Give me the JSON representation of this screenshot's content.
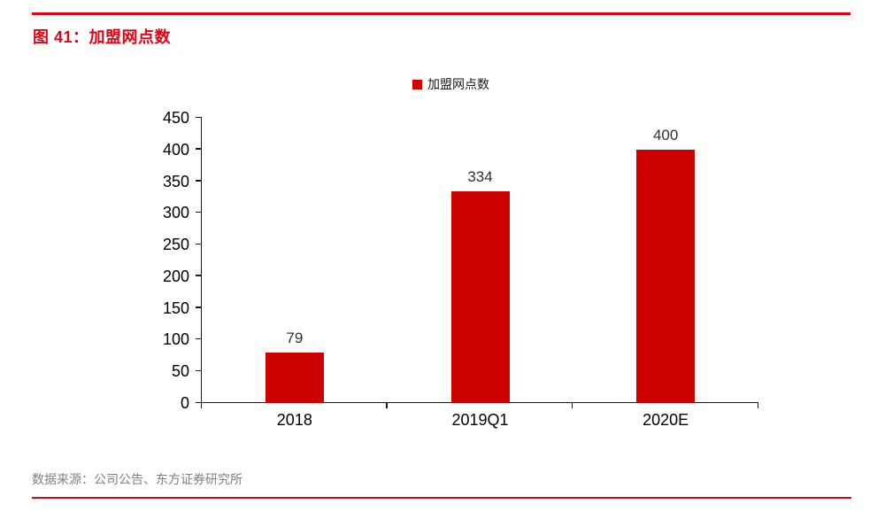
{
  "page": {
    "title": "图 41：加盟网点数",
    "source_note": "数据来源：公司公告、东方证券研究所",
    "title_color": "#e60012",
    "rule_color": "#e8000b",
    "source_text_color": "#808080"
  },
  "chart_data": {
    "type": "bar",
    "title": "",
    "legend": [
      "加盟网点数"
    ],
    "legend_position": "top-center",
    "legend_marker_color": "#ce0101",
    "categories": [
      "2018",
      "2019Q1",
      "2020E"
    ],
    "values": [
      79,
      334,
      400
    ],
    "value_labels": [
      "79",
      "334",
      "400"
    ],
    "bar_color": "#ce0101",
    "ylim": [
      0,
      450
    ],
    "ytick_step": 50,
    "yticks": [
      0,
      50,
      100,
      150,
      200,
      250,
      300,
      350,
      400,
      450
    ],
    "grid": false
  }
}
